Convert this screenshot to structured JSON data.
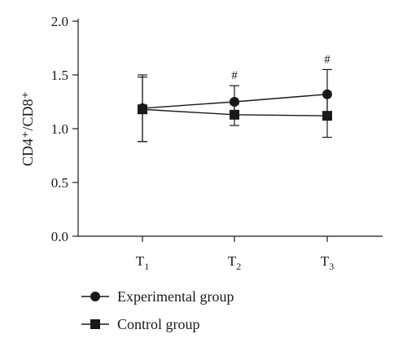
{
  "chart_data": {
    "type": "line",
    "title": "",
    "xlabel": "",
    "ylabel": "CD4⁺/CD8⁺",
    "ylim": [
      0,
      2.0
    ],
    "y_ticks": [
      "0.0",
      "0.5",
      "1.0",
      "1.5",
      "2.0"
    ],
    "categories": [
      {
        "base": "T",
        "sub": "1"
      },
      {
        "base": "T",
        "sub": "2"
      },
      {
        "base": "T",
        "sub": "3"
      }
    ],
    "grid": false,
    "legend_position": "bottom-left",
    "series": [
      {
        "name": "Experimental group",
        "marker": "circle",
        "values": [
          1.19,
          1.25,
          1.32
        ],
        "error": [
          0.31,
          0.15,
          0.23
        ]
      },
      {
        "name": "Control group",
        "marker": "square",
        "values": [
          1.18,
          1.13,
          1.12
        ],
        "error": [
          0.3,
          0.1,
          0.2
        ]
      }
    ],
    "annotations": [
      {
        "category_index": 1,
        "text": "#"
      },
      {
        "category_index": 2,
        "text": "#"
      }
    ],
    "colors": {
      "ink": "#1a1a1a"
    }
  }
}
